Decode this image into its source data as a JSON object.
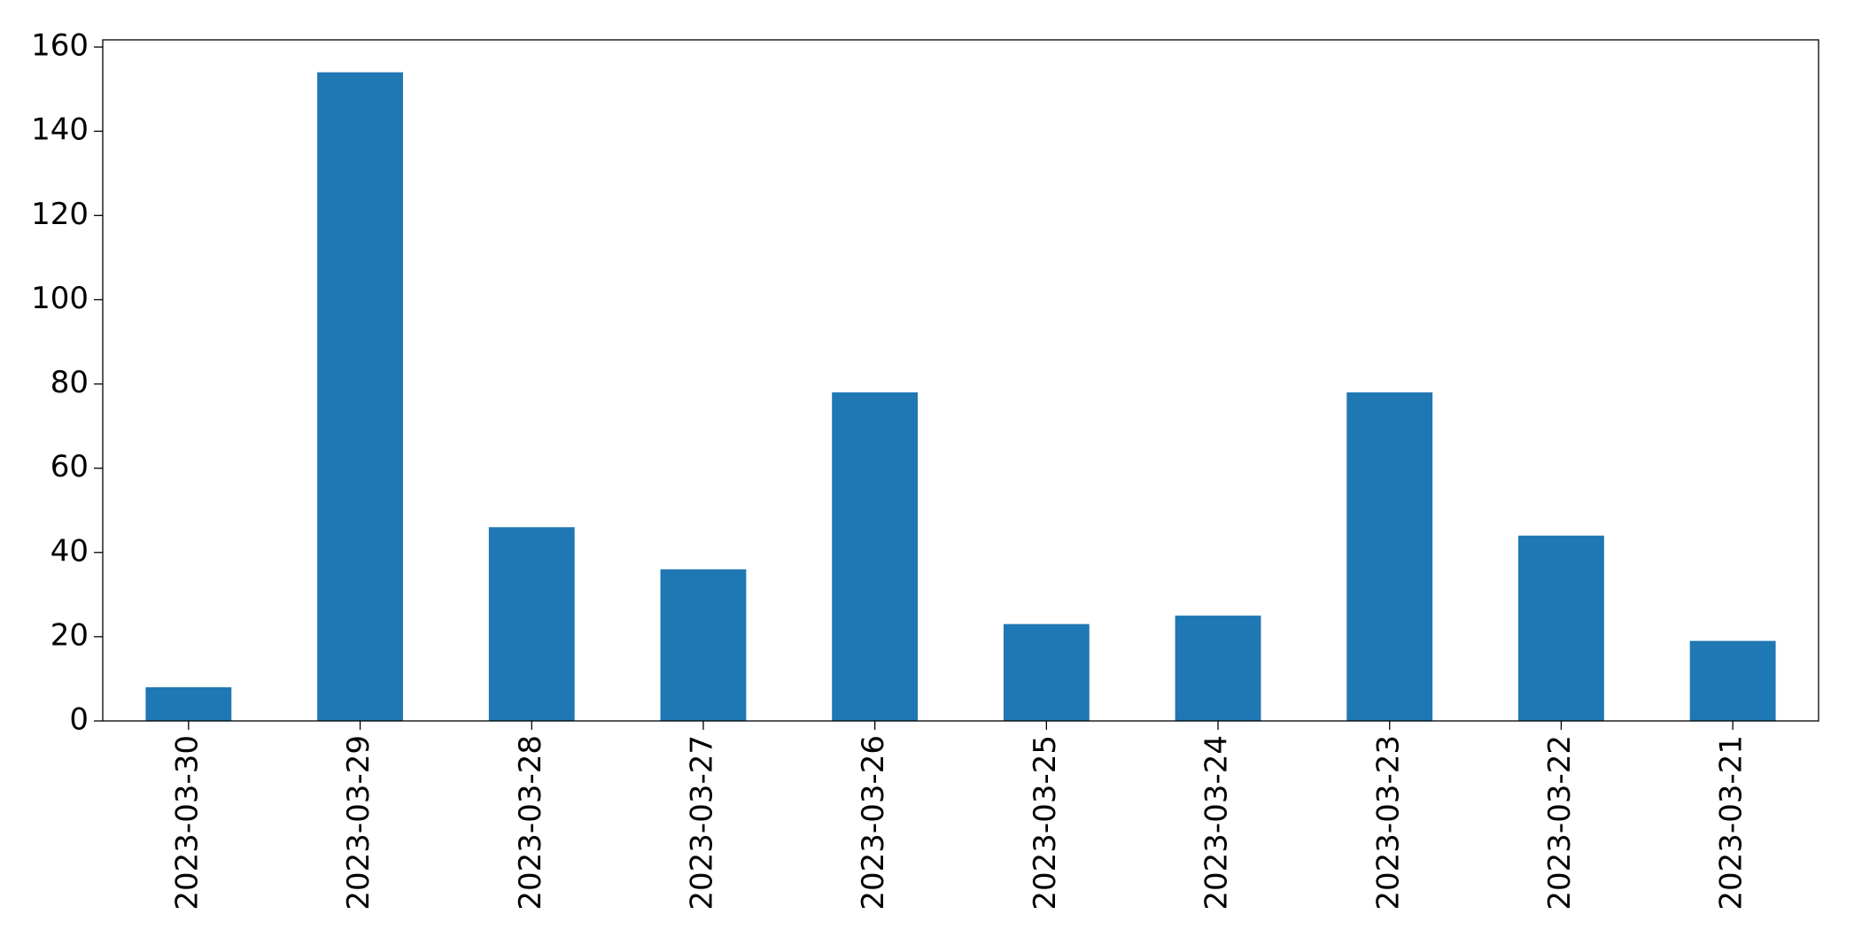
{
  "chart_data": {
    "type": "bar",
    "categories": [
      "2023-03-30",
      "2023-03-29",
      "2023-03-28",
      "2023-03-27",
      "2023-03-26",
      "2023-03-25",
      "2023-03-24",
      "2023-03-23",
      "2023-03-22",
      "2023-03-21"
    ],
    "values": [
      8,
      154,
      46,
      36,
      78,
      23,
      25,
      78,
      44,
      19
    ],
    "color": "#1f77b4",
    "ylim": [
      0,
      161.7
    ],
    "yticks": [
      0,
      20,
      40,
      60,
      80,
      100,
      120,
      140,
      160
    ],
    "grid": false
  }
}
